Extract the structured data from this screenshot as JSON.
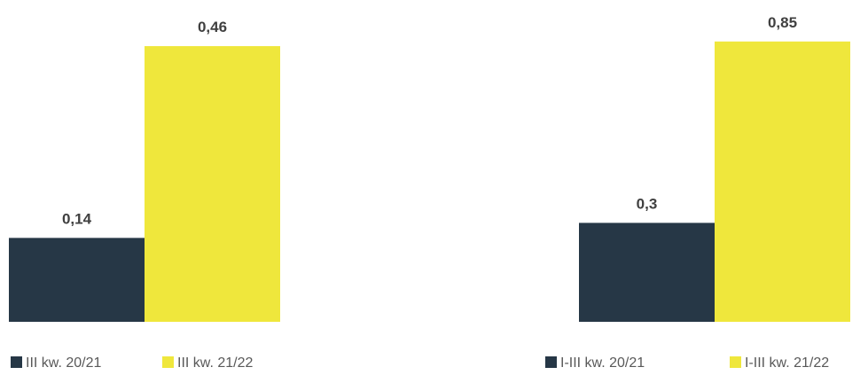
{
  "colors": {
    "dark": "#263746",
    "yellow": "#efe73c"
  },
  "chart_data": [
    {
      "type": "bar",
      "categories": [
        "III kw. 20/21",
        "III kw. 21/22"
      ],
      "values": [
        0.14,
        0.46
      ],
      "labels": [
        "0,14",
        "0,46"
      ],
      "legend": [
        "III kw. 20/21",
        "III kw. 21/22"
      ],
      "legend_position": "bottom",
      "grid": false
    },
    {
      "type": "bar",
      "categories": [
        "I-III kw. 20/21",
        "I-III kw. 21/22"
      ],
      "values": [
        0.3,
        0.85
      ],
      "labels": [
        "0,3",
        "0,85"
      ],
      "legend": [
        "I-III kw. 20/21",
        "I-III kw. 21/22"
      ],
      "legend_position": "bottom",
      "grid": false
    }
  ]
}
